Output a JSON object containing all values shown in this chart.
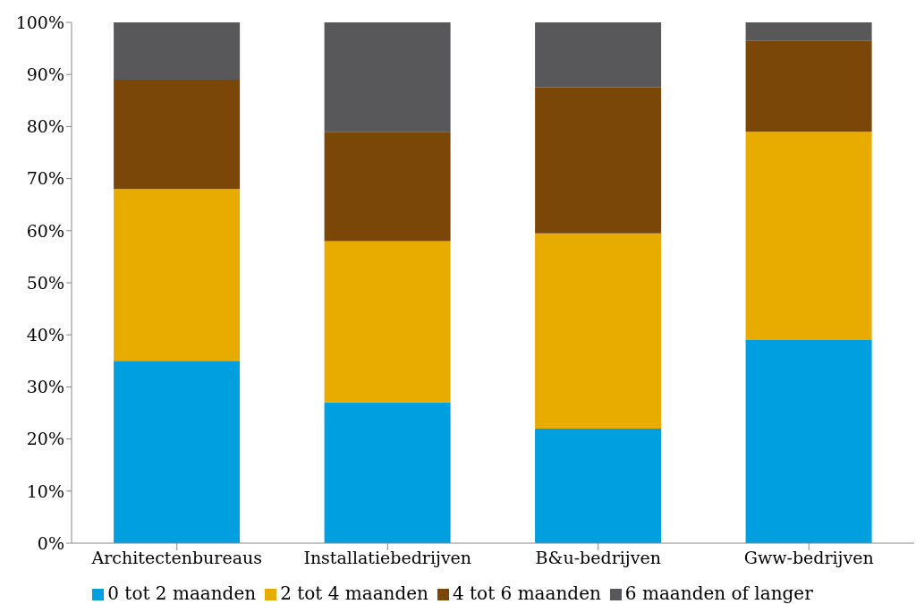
{
  "chart_data": {
    "type": "bar",
    "stacked": true,
    "categories": [
      "Architectenbureaus",
      "Installatiebedrijven",
      "B&u-bedrijven",
      "Gww-bedrijven"
    ],
    "series": [
      {
        "name": "0 tot 2 maanden",
        "color": "#009fe0",
        "values": [
          35,
          27,
          22,
          39
        ]
      },
      {
        "name": "2 tot 4 maanden",
        "color": "#e8ab00",
        "values": [
          33,
          31,
          37.5,
          40
        ]
      },
      {
        "name": "4 tot 6 maanden",
        "color": "#7a4708",
        "values": [
          21,
          21,
          28,
          17.5
        ]
      },
      {
        "name": "6 maanden of langer",
        "color": "#58585a",
        "values": [
          11,
          21,
          12.5,
          3.5
        ]
      }
    ],
    "ylim": [
      0,
      100
    ],
    "yticks": [
      {
        "value": 0,
        "label": "0%"
      },
      {
        "value": 10,
        "label": "10%"
      },
      {
        "value": 20,
        "label": "20%"
      },
      {
        "value": 30,
        "label": "30%"
      },
      {
        "value": 40,
        "label": "40%"
      },
      {
        "value": 50,
        "label": "50%"
      },
      {
        "value": 60,
        "label": "60%"
      },
      {
        "value": 70,
        "label": "70%"
      },
      {
        "value": 80,
        "label": "80%"
      },
      {
        "value": 90,
        "label": "90%"
      },
      {
        "value": 100,
        "label": "100%"
      }
    ],
    "grid": false,
    "legend": "bottom"
  }
}
